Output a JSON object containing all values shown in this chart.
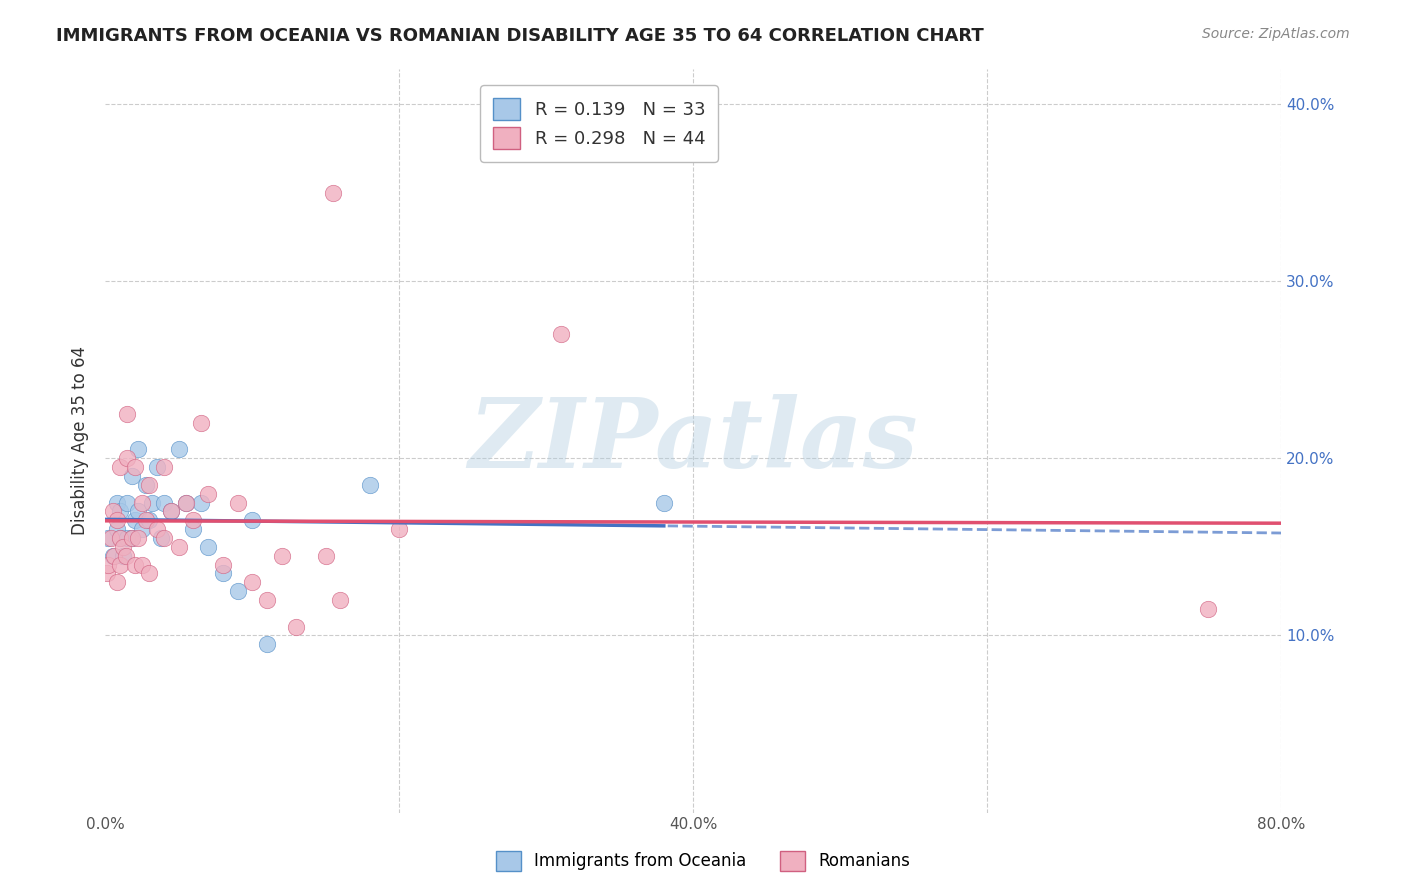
{
  "title": "IMMIGRANTS FROM OCEANIA VS ROMANIAN DISABILITY AGE 35 TO 64 CORRELATION CHART",
  "source": "Source: ZipAtlas.com",
  "xlabel": "",
  "ylabel": "Disability Age 35 to 64",
  "xlim": [
    0.0,
    0.8
  ],
  "ylim": [
    0.0,
    0.42
  ],
  "xticks": [
    0.0,
    0.2,
    0.4,
    0.6,
    0.8
  ],
  "yticks": [
    0.0,
    0.1,
    0.2,
    0.3,
    0.4
  ],
  "xticklabels": [
    "0.0%",
    "",
    "40.0%",
    "",
    "80.0%"
  ],
  "yticklabels": [
    "",
    "10.0%",
    "20.0%",
    "30.0%",
    "40.0%"
  ],
  "watermark": "ZIPatlas",
  "series": [
    {
      "name": "Immigrants from Oceania",
      "R": 0.139,
      "N": 33,
      "color": "#a8c8e8",
      "edge_color": "#5590c8",
      "line_color": "#4472c4",
      "x": [
        0.002,
        0.005,
        0.008,
        0.008,
        0.01,
        0.01,
        0.012,
        0.015,
        0.015,
        0.018,
        0.018,
        0.02,
        0.022,
        0.022,
        0.025,
        0.028,
        0.03,
        0.032,
        0.035,
        0.038,
        0.04,
        0.045,
        0.05,
        0.055,
        0.06,
        0.065,
        0.07,
        0.08,
        0.09,
        0.1,
        0.11,
        0.18,
        0.38
      ],
      "y": [
        0.155,
        0.145,
        0.16,
        0.175,
        0.155,
        0.17,
        0.145,
        0.155,
        0.175,
        0.155,
        0.19,
        0.165,
        0.17,
        0.205,
        0.16,
        0.185,
        0.165,
        0.175,
        0.195,
        0.155,
        0.175,
        0.17,
        0.205,
        0.175,
        0.16,
        0.175,
        0.15,
        0.135,
        0.125,
        0.165,
        0.095,
        0.185,
        0.175
      ]
    },
    {
      "name": "Romanians",
      "R": 0.298,
      "N": 44,
      "color": "#f0b0c0",
      "edge_color": "#d06080",
      "line_color": "#e05070",
      "x": [
        0.001,
        0.002,
        0.004,
        0.005,
        0.006,
        0.008,
        0.008,
        0.01,
        0.01,
        0.01,
        0.012,
        0.014,
        0.015,
        0.015,
        0.018,
        0.02,
        0.02,
        0.022,
        0.025,
        0.025,
        0.028,
        0.03,
        0.03,
        0.035,
        0.04,
        0.04,
        0.045,
        0.05,
        0.055,
        0.06,
        0.065,
        0.07,
        0.08,
        0.09,
        0.1,
        0.11,
        0.12,
        0.13,
        0.15,
        0.155,
        0.16,
        0.2,
        0.31,
        0.75
      ],
      "y": [
        0.135,
        0.14,
        0.155,
        0.17,
        0.145,
        0.13,
        0.165,
        0.14,
        0.155,
        0.195,
        0.15,
        0.145,
        0.2,
        0.225,
        0.155,
        0.14,
        0.195,
        0.155,
        0.14,
        0.175,
        0.165,
        0.135,
        0.185,
        0.16,
        0.155,
        0.195,
        0.17,
        0.15,
        0.175,
        0.165,
        0.22,
        0.18,
        0.14,
        0.175,
        0.13,
        0.12,
        0.145,
        0.105,
        0.145,
        0.35,
        0.12,
        0.16,
        0.27,
        0.115
      ]
    }
  ],
  "background_color": "#ffffff",
  "grid_color": "#cccccc"
}
